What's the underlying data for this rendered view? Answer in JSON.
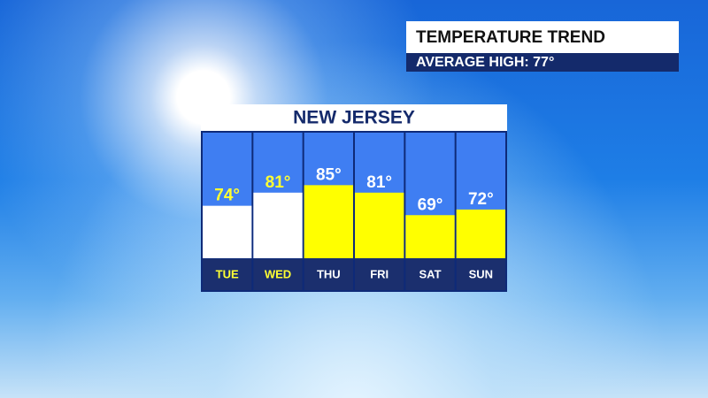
{
  "header": {
    "title": "TEMPERATURE TREND",
    "subtitle": "AVERAGE HIGH:  77°"
  },
  "chart_data": {
    "type": "bar",
    "title": "NEW JERSEY",
    "categories": [
      "TUE",
      "WED",
      "THU",
      "FRI",
      "SAT",
      "SUN"
    ],
    "values": [
      74,
      81,
      85,
      81,
      69,
      72
    ],
    "value_labels": [
      "74°",
      "81°",
      "85°",
      "81°",
      "69°",
      "72°"
    ],
    "colors": [
      "#ffffff",
      "#ffffff",
      "#ffff00",
      "#ffff00",
      "#ffff00",
      "#ffff00"
    ],
    "label_colors": [
      "#ffff33",
      "#ffff33",
      "#ffffff",
      "#ffffff",
      "#ffffff",
      "#ffffff"
    ],
    "ylim": [
      46,
      113
    ]
  }
}
